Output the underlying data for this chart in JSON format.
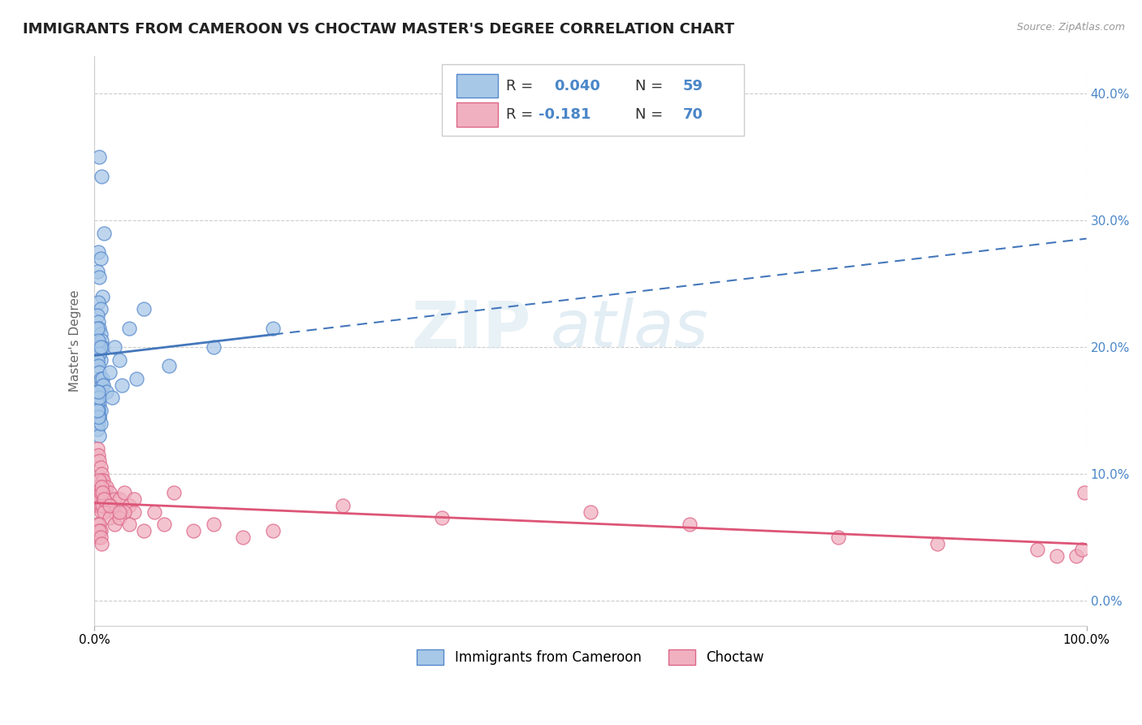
{
  "title": "IMMIGRANTS FROM CAMEROON VS CHOCTAW MASTER'S DEGREE CORRELATION CHART",
  "source": "Source: ZipAtlas.com",
  "ylabel": "Master's Degree",
  "xlim": [
    0,
    100
  ],
  "ylim": [
    -2,
    43
  ],
  "yticks": [
    0,
    10,
    20,
    30,
    40
  ],
  "blue_color": "#a8c8e8",
  "pink_color": "#f0b0c0",
  "blue_edge_color": "#5588cc",
  "pink_edge_color": "#dd6688",
  "blue_line_color": "#4477bb",
  "pink_line_color": "#dd5577",
  "legend_label1": "Immigrants from Cameroon",
  "legend_label2": "Choctaw",
  "background_color": "#ffffff",
  "grid_color": "#cccccc",
  "watermark_text": "ZIP atlas",
  "title_color": "#222222",
  "title_fontsize": 13,
  "source_fontsize": 9,
  "axis_label_color": "#4a86c8",
  "blue_x": [
    0.5,
    0.7,
    1.0,
    0.4,
    0.6,
    0.3,
    0.5,
    0.8,
    0.4,
    0.6,
    0.3,
    0.4,
    0.5,
    0.6,
    0.7,
    0.8,
    0.5,
    0.4,
    0.6,
    0.3,
    0.4,
    0.5,
    0.6,
    0.3,
    0.4,
    0.5,
    0.6,
    0.7,
    0.8,
    0.9,
    1.2,
    1.5,
    2.0,
    2.5,
    3.5,
    5.0,
    0.3,
    0.4,
    0.5,
    0.4,
    0.5,
    0.6,
    0.3,
    0.4,
    0.5,
    0.4,
    0.3,
    0.5,
    0.6,
    0.4,
    0.3,
    0.5,
    0.4,
    1.8,
    2.8,
    4.2,
    7.5,
    12.0,
    18.0
  ],
  "blue_y": [
    35.0,
    33.5,
    29.0,
    27.5,
    27.0,
    26.0,
    25.5,
    24.0,
    23.5,
    23.0,
    22.5,
    22.0,
    21.5,
    21.0,
    20.5,
    20.0,
    19.5,
    20.0,
    19.0,
    21.5,
    20.5,
    19.5,
    20.0,
    19.0,
    18.5,
    18.0,
    17.5,
    17.0,
    17.5,
    17.0,
    16.5,
    18.0,
    20.0,
    19.0,
    21.5,
    23.0,
    16.5,
    16.0,
    15.5,
    15.0,
    14.5,
    15.0,
    15.5,
    15.0,
    14.5,
    14.0,
    13.5,
    13.0,
    14.0,
    14.5,
    15.0,
    16.0,
    16.5,
    16.0,
    17.0,
    17.5,
    18.5,
    20.0,
    21.5
  ],
  "pink_x": [
    0.3,
    0.4,
    0.5,
    0.6,
    0.7,
    0.8,
    0.9,
    1.0,
    1.2,
    1.5,
    2.0,
    2.5,
    3.0,
    3.5,
    4.0,
    0.3,
    0.4,
    0.5,
    0.6,
    0.8,
    1.0,
    1.5,
    2.0,
    3.0,
    0.4,
    0.5,
    0.6,
    0.7,
    0.8,
    1.0,
    1.5,
    2.0,
    2.5,
    3.5,
    5.0,
    7.0,
    10.0,
    12.0,
    15.0,
    18.0,
    0.4,
    0.5,
    0.6,
    0.7,
    0.8,
    1.0,
    1.5,
    2.5,
    4.0,
    6.0,
    0.3,
    0.4,
    0.5,
    0.6,
    0.4,
    0.5,
    0.6,
    0.7,
    8.0,
    25.0,
    35.0,
    50.0,
    60.0,
    75.0,
    85.0,
    95.0,
    97.0,
    99.0,
    99.5,
    99.8
  ],
  "pink_y": [
    12.0,
    11.5,
    11.0,
    10.5,
    10.0,
    9.5,
    9.5,
    9.0,
    9.0,
    8.5,
    8.0,
    8.0,
    8.5,
    7.5,
    7.0,
    8.5,
    9.0,
    8.5,
    8.0,
    8.5,
    8.0,
    7.5,
    7.0,
    7.0,
    7.5,
    8.0,
    7.5,
    7.0,
    7.5,
    7.0,
    6.5,
    6.0,
    6.5,
    6.0,
    5.5,
    6.0,
    5.5,
    6.0,
    5.0,
    5.5,
    9.0,
    9.5,
    8.5,
    9.0,
    8.5,
    8.0,
    7.5,
    7.0,
    8.0,
    7.0,
    6.0,
    5.5,
    6.0,
    5.5,
    5.0,
    5.5,
    5.0,
    4.5,
    8.5,
    7.5,
    6.5,
    7.0,
    6.0,
    5.0,
    4.5,
    4.0,
    3.5,
    3.5,
    4.0,
    8.5
  ]
}
